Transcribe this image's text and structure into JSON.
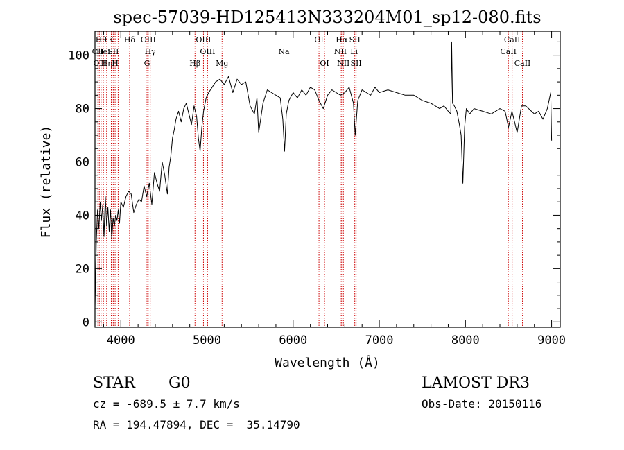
{
  "chart_data": {
    "type": "line",
    "title": "spec-57039-HD125413N333204M01_sp12-080.fits",
    "xlabel": "Wavelength (Å)",
    "ylabel": "Flux (relative)",
    "xlim": [
      3700,
      9100
    ],
    "ylim": [
      -2,
      109
    ],
    "xticks": [
      4000,
      5000,
      6000,
      7000,
      8000,
      9000
    ],
    "yticks": [
      0,
      20,
      40,
      60,
      80,
      100
    ],
    "grid": false,
    "line_color": "#000000",
    "marker_color": "#cc0000",
    "series": [
      {
        "x": [
          3700,
          3715,
          3730,
          3745,
          3760,
          3775,
          3790,
          3805,
          3820,
          3835,
          3850,
          3865,
          3880,
          3895,
          3910,
          3925,
          3940,
          3955,
          3970,
          3985,
          4000,
          4030,
          4060,
          4090,
          4120,
          4150,
          4180,
          4210,
          4240,
          4270,
          4300,
          4330,
          4360,
          4390,
          4420,
          4450,
          4480,
          4510,
          4540,
          4560,
          4580,
          4600,
          4620,
          4640,
          4670,
          4700,
          4730,
          4760,
          4790,
          4820,
          4850,
          4880,
          4900,
          4920,
          4940,
          4960,
          4990,
          5020,
          5060,
          5100,
          5150,
          5200,
          5250,
          5300,
          5350,
          5400,
          5450,
          5500,
          5550,
          5580,
          5600,
          5650,
          5700,
          5750,
          5800,
          5850,
          5880,
          5900,
          5920,
          5950,
          6000,
          6050,
          6100,
          6150,
          6200,
          6250,
          6300,
          6350,
          6400,
          6450,
          6500,
          6550,
          6600,
          6650,
          6700,
          6720,
          6750,
          6800,
          6850,
          6900,
          6950,
          7000,
          7100,
          7200,
          7300,
          7400,
          7500,
          7600,
          7700,
          7750,
          7800,
          7830,
          7840,
          7850,
          7870,
          7900,
          7930,
          7950,
          7970,
          7990,
          8010,
          8050,
          8100,
          8200,
          8300,
          8400,
          8460,
          8500,
          8540,
          8600,
          8650,
          8700,
          8800,
          8850,
          8900,
          8950,
          8990,
          9000
        ],
        "y": [
          5,
          30,
          42,
          35,
          45,
          38,
          44,
          32,
          47,
          36,
          43,
          34,
          42,
          31,
          39,
          36,
          40,
          38,
          42,
          37,
          45,
          43,
          47,
          49,
          48,
          41,
          44,
          46,
          45,
          51,
          47,
          52,
          44,
          56,
          52,
          49,
          60,
          55,
          48,
          58,
          62,
          69,
          72,
          76,
          79,
          75,
          80,
          82,
          78,
          74,
          81,
          77,
          69,
          64,
          73,
          79,
          84,
          86,
          88,
          90,
          91,
          89,
          92,
          86,
          91,
          89,
          90,
          81,
          78,
          84,
          71,
          82,
          87,
          86,
          85,
          84,
          76,
          64,
          78,
          83,
          86,
          84,
          87,
          85,
          88,
          87,
          83,
          80,
          85,
          87,
          86,
          85,
          86,
          88,
          82,
          70,
          83,
          87,
          86,
          85,
          88,
          86,
          87,
          86,
          85,
          85,
          83,
          82,
          80,
          81,
          79,
          78,
          105,
          82,
          81,
          79,
          74,
          70,
          52,
          73,
          80,
          78,
          80,
          79,
          78,
          80,
          79,
          73,
          79,
          71,
          81,
          81,
          78,
          79,
          76,
          80,
          86,
          68
        ]
      }
    ],
    "line_markers": [
      {
        "x": 3734,
        "label": "CII",
        "row": 1
      },
      {
        "x": 3750,
        "label": "OII",
        "row": 2
      },
      {
        "x": 3771,
        "label": "Hθ",
        "row": 0
      },
      {
        "x": 3798,
        "label": "HeI",
        "row": 1
      },
      {
        "x": 3835,
        "label": "Hη",
        "row": 2
      },
      {
        "x": 3889,
        "label": "K",
        "row": 0
      },
      {
        "x": 3912,
        "label": "SII",
        "row": 1
      },
      {
        "x": 3934,
        "label": "H",
        "row": 2
      },
      {
        "x": 3969,
        "label": "",
        "row": 0
      },
      {
        "x": 4102,
        "label": "Hδ",
        "row": 0
      },
      {
        "x": 4304,
        "label": "G",
        "row": 2
      },
      {
        "x": 4318,
        "label": "OIII",
        "row": 0
      },
      {
        "x": 4341,
        "label": "Hγ",
        "row": 1
      },
      {
        "x": 4861,
        "label": "Hβ",
        "row": 2
      },
      {
        "x": 4959,
        "label": "OIII",
        "row": 0
      },
      {
        "x": 5007,
        "label": "OIII",
        "row": 1
      },
      {
        "x": 5175,
        "label": "Mg",
        "row": 2
      },
      {
        "x": 5893,
        "label": "Na",
        "row": 1
      },
      {
        "x": 6300,
        "label": "OI",
        "row": 0
      },
      {
        "x": 6364,
        "label": "OI",
        "row": 2
      },
      {
        "x": 6548,
        "label": "NII",
        "row": 1
      },
      {
        "x": 6563,
        "label": "Hα",
        "row": 0
      },
      {
        "x": 6583,
        "label": "NII",
        "row": 2
      },
      {
        "x": 6707,
        "label": "Li",
        "row": 1
      },
      {
        "x": 6716,
        "label": "SII",
        "row": 0
      },
      {
        "x": 6731,
        "label": "SII",
        "row": 2
      },
      {
        "x": 8498,
        "label": "CaII",
        "row": 1
      },
      {
        "x": 8542,
        "label": "CaII",
        "row": 0
      },
      {
        "x": 8662,
        "label": "CaII",
        "row": 2
      }
    ]
  },
  "footer": {
    "class_label": "STAR",
    "subclass": "G0",
    "survey": "LAMOST DR3",
    "redshift": "cz = -689.5 ± 7.7 km/s",
    "obs_date": "Obs-Date: 20150116",
    "coords": "RA = 194.47894, DEC =  35.14790"
  }
}
